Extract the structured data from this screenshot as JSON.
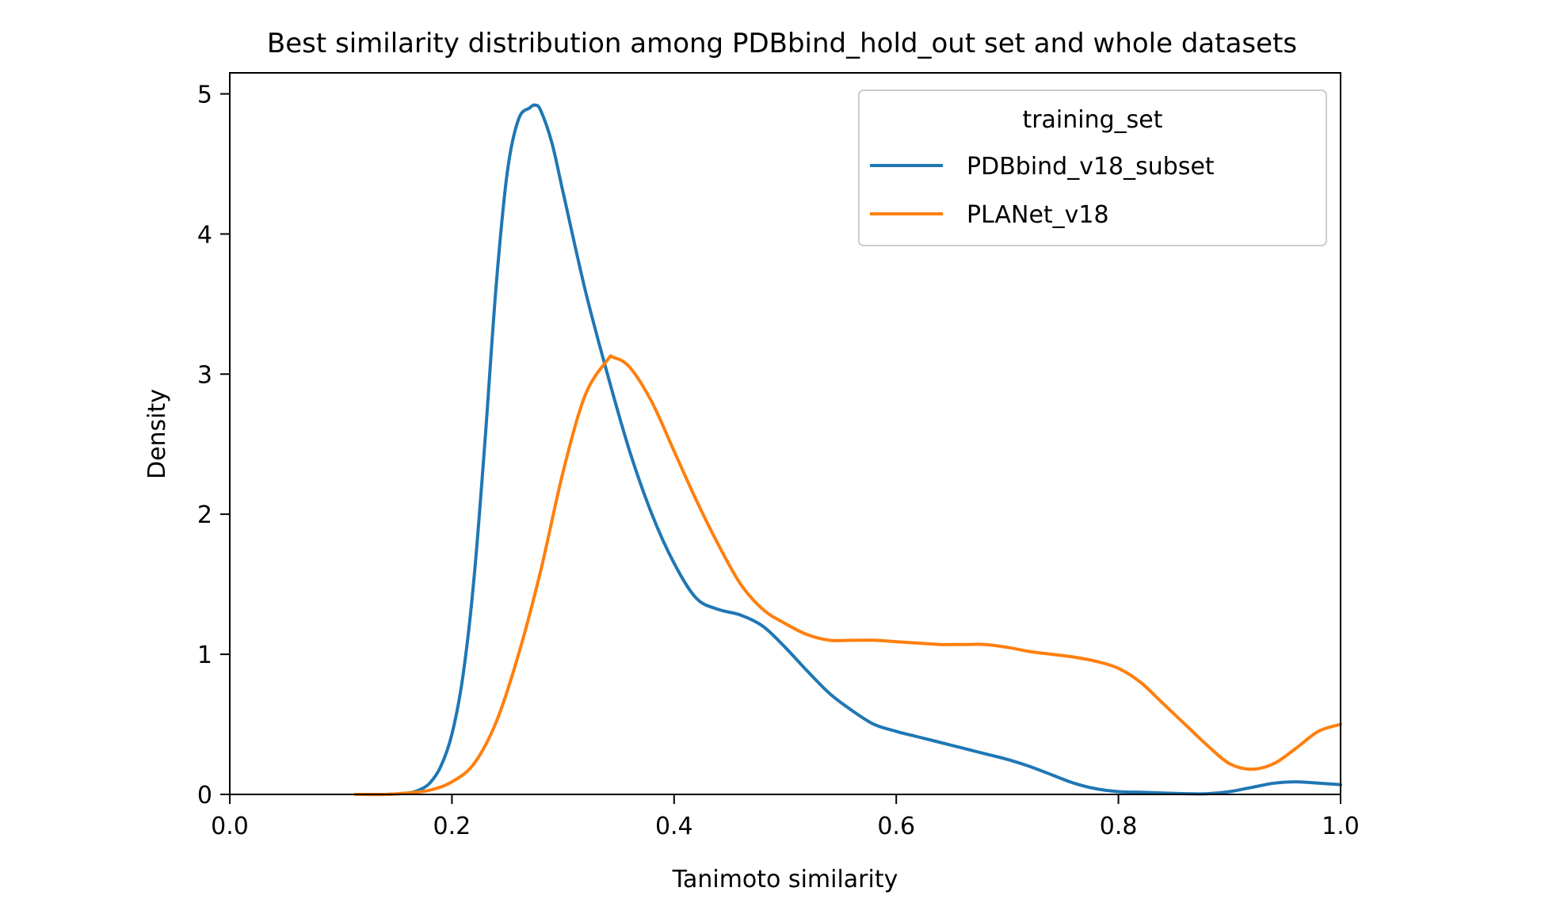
{
  "chart_data": {
    "type": "line",
    "title": "Best similarity distribution among PDBbind_hold_out set and whole datasets",
    "xlabel": "Tanimoto similarity",
    "ylabel": "Density",
    "xlim": [
      0.0,
      1.0
    ],
    "ylim": [
      0,
      5.15
    ],
    "xticks": [
      0.0,
      0.2,
      0.4,
      0.6,
      0.8,
      1.0
    ],
    "xtick_labels": [
      "0.0",
      "0.2",
      "0.4",
      "0.6",
      "0.8",
      "1.0"
    ],
    "yticks": [
      0,
      1,
      2,
      3,
      4,
      5
    ],
    "ytick_labels": [
      "0",
      "1",
      "2",
      "3",
      "4",
      "5"
    ],
    "grid": false,
    "legend": {
      "title": "training_set",
      "placement": "top-right"
    },
    "series": [
      {
        "name": "PDBbind_v18_subset",
        "color": "#1f77b4",
        "x": [
          0.113,
          0.14,
          0.16,
          0.17,
          0.18,
          0.19,
          0.2,
          0.21,
          0.22,
          0.23,
          0.24,
          0.25,
          0.26,
          0.27,
          0.275,
          0.28,
          0.29,
          0.3,
          0.32,
          0.34,
          0.36,
          0.38,
          0.4,
          0.42,
          0.44,
          0.46,
          0.48,
          0.5,
          0.52,
          0.54,
          0.56,
          0.58,
          0.6,
          0.62,
          0.64,
          0.66,
          0.68,
          0.7,
          0.72,
          0.74,
          0.76,
          0.78,
          0.8,
          0.82,
          0.84,
          0.86,
          0.88,
          0.9,
          0.92,
          0.94,
          0.96,
          0.98,
          1.0
        ],
        "y": [
          0.0,
          0.0,
          0.01,
          0.03,
          0.08,
          0.2,
          0.43,
          0.85,
          1.55,
          2.55,
          3.65,
          4.45,
          4.82,
          4.9,
          4.92,
          4.88,
          4.65,
          4.3,
          3.6,
          3.0,
          2.45,
          2.0,
          1.65,
          1.4,
          1.32,
          1.28,
          1.2,
          1.05,
          0.88,
          0.72,
          0.6,
          0.5,
          0.45,
          0.41,
          0.37,
          0.33,
          0.29,
          0.25,
          0.2,
          0.14,
          0.08,
          0.04,
          0.02,
          0.015,
          0.01,
          0.005,
          0.005,
          0.02,
          0.05,
          0.08,
          0.09,
          0.08,
          0.07
        ]
      },
      {
        "name": "PLANet_v18",
        "color": "#ff7f0e",
        "x": [
          0.113,
          0.14,
          0.16,
          0.18,
          0.2,
          0.22,
          0.24,
          0.26,
          0.28,
          0.3,
          0.32,
          0.34,
          0.345,
          0.36,
          0.38,
          0.4,
          0.42,
          0.44,
          0.46,
          0.48,
          0.5,
          0.52,
          0.54,
          0.56,
          0.58,
          0.6,
          0.62,
          0.64,
          0.66,
          0.68,
          0.7,
          0.72,
          0.74,
          0.76,
          0.78,
          0.8,
          0.82,
          0.84,
          0.86,
          0.88,
          0.9,
          0.92,
          0.94,
          0.96,
          0.98,
          1.0
        ],
        "y": [
          0.0,
          0.0,
          0.01,
          0.03,
          0.09,
          0.22,
          0.52,
          1.0,
          1.6,
          2.3,
          2.85,
          3.1,
          3.12,
          3.05,
          2.8,
          2.45,
          2.1,
          1.78,
          1.5,
          1.32,
          1.22,
          1.14,
          1.1,
          1.1,
          1.1,
          1.09,
          1.08,
          1.07,
          1.07,
          1.07,
          1.05,
          1.02,
          1.0,
          0.98,
          0.95,
          0.9,
          0.8,
          0.65,
          0.5,
          0.35,
          0.22,
          0.18,
          0.22,
          0.33,
          0.45,
          0.5
        ]
      }
    ]
  }
}
